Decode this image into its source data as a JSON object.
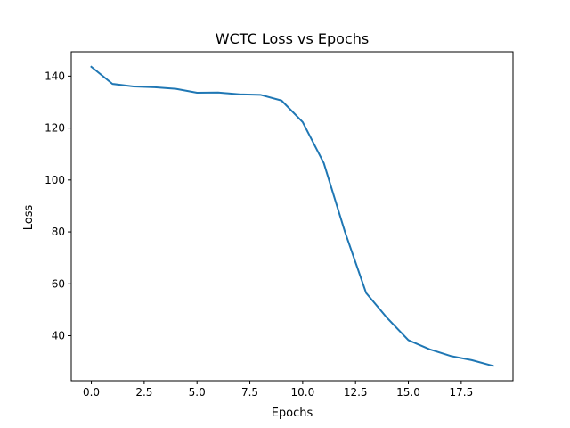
{
  "chart_data": {
    "type": "line",
    "title": "WCTC Loss vs Epochs",
    "xlabel": "Epochs",
    "ylabel": "Loss",
    "x": [
      0,
      1,
      2,
      3,
      4,
      5,
      6,
      7,
      8,
      9,
      10,
      11,
      12,
      13,
      14,
      15,
      16,
      17,
      18,
      19
    ],
    "series": [
      {
        "values": [
          143.6,
          137.0,
          136.0,
          135.7,
          135.1,
          133.6,
          133.7,
          133.0,
          132.8,
          130.6,
          122.3,
          106.5,
          80.0,
          56.5,
          46.8,
          38.3,
          34.8,
          32.2,
          30.6,
          28.4
        ],
        "color": "#1f77b4"
      }
    ],
    "xlim": [
      -0.95,
      19.95
    ],
    "ylim": [
      22.66,
      149.4
    ],
    "xticks": [
      0,
      2.5,
      5,
      7.5,
      10,
      12.5,
      15,
      17.5
    ],
    "xtick_labels": [
      "0.0",
      "2.5",
      "5.0",
      "7.5",
      "10.0",
      "12.5",
      "15.0",
      "17.5"
    ],
    "yticks": [
      40,
      60,
      80,
      100,
      120,
      140
    ],
    "ytick_labels": [
      "40",
      "60",
      "80",
      "100",
      "120",
      "140"
    ],
    "grid": false,
    "legend": "none"
  }
}
